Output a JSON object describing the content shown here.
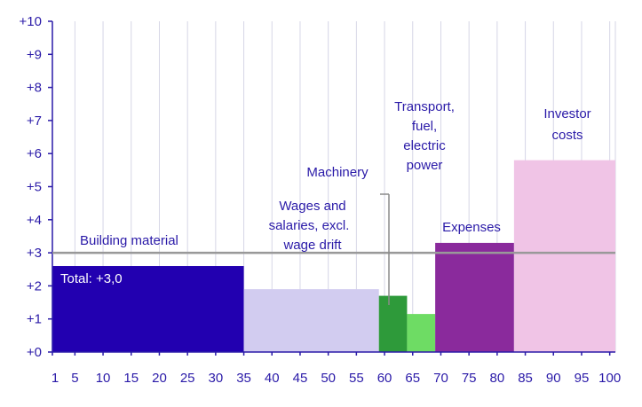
{
  "chart_data": {
    "type": "bar",
    "variable_width": true,
    "xlim": [
      1,
      100
    ],
    "ylim": [
      0,
      10
    ],
    "x_ticks": [
      1,
      5,
      10,
      15,
      20,
      25,
      30,
      35,
      40,
      45,
      50,
      55,
      60,
      65,
      70,
      75,
      80,
      85,
      90,
      95,
      100
    ],
    "x_tick_labels": [
      "1",
      "5",
      "10",
      "15",
      "20",
      "25",
      "30",
      "35",
      "40",
      "45",
      "50",
      "55",
      "60",
      "65",
      "70",
      "75",
      "80",
      "85",
      "90",
      "95",
      "100"
    ],
    "y_ticks": [
      0,
      1,
      2,
      3,
      4,
      5,
      6,
      7,
      8,
      9,
      10
    ],
    "y_tick_labels": [
      "+0",
      "+1",
      "+2",
      "+3",
      "+4",
      "+5",
      "+6",
      "+7",
      "+8",
      "+9",
      "+10"
    ],
    "grid": "vertical",
    "bars": [
      {
        "label": "Building material",
        "x0": 1,
        "x1": 35,
        "value": 2.6,
        "color": "#2200b0"
      },
      {
        "label": "Wages and salaries, excl. wage drift",
        "x0": 35,
        "x1": 59,
        "value": 1.9,
        "color": "#d2ccf0"
      },
      {
        "label": "Machinery",
        "x0": 59,
        "x1": 64,
        "value": 1.7,
        "color": "#2e9a3a"
      },
      {
        "label": "Transport, fuel, electric power",
        "x0": 64,
        "x1": 69,
        "value": 1.15,
        "color": "#6edc64"
      },
      {
        "label": "Expenses",
        "x0": 69,
        "x1": 83,
        "value": 3.3,
        "color": "#8a2a9c"
      },
      {
        "label": "Investor costs",
        "x0": 83,
        "x1": 101,
        "value": 5.8,
        "color": "#f0c4e6"
      }
    ],
    "total_line": {
      "value": 3.0,
      "label": "Total: +3,0",
      "color": "#999999"
    },
    "annotations": {
      "building_material": "Building material",
      "wages_l1": "Wages and",
      "wages_l2": "salaries, excl.",
      "wages_l3": "wage drift",
      "machinery": "Machinery",
      "transport_l1": "Transport,",
      "transport_l2": "fuel,",
      "transport_l3": "electric",
      "transport_l4": "power",
      "expenses": "Expenses",
      "investor_l1": "Investor",
      "investor_l2": "costs"
    }
  }
}
